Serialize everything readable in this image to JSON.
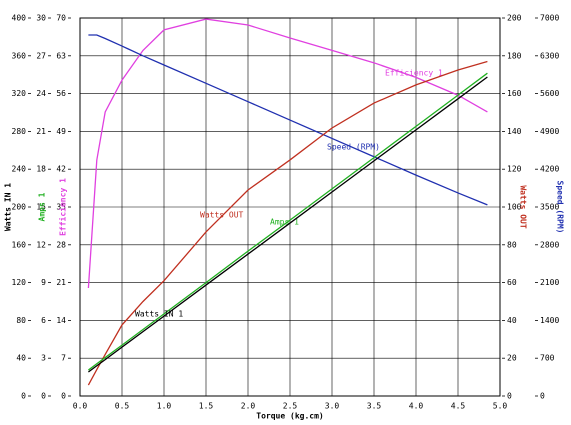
{
  "chart_data": {
    "type": "line",
    "x_label": "Torque (kg.cm)",
    "xlim": [
      0,
      5
    ],
    "xticks": [
      {
        "value": 0,
        "label": "0.0"
      },
      {
        "value": 0.5,
        "label": "0.5"
      },
      {
        "value": 1,
        "label": "1.0"
      },
      {
        "value": 1.5,
        "label": "1.5"
      },
      {
        "value": 2,
        "label": "2.0"
      },
      {
        "value": 2.5,
        "label": "2.5"
      },
      {
        "value": 3,
        "label": "3.0"
      },
      {
        "value": 3.5,
        "label": "3.5"
      },
      {
        "value": 4,
        "label": "4.0"
      },
      {
        "value": 4.5,
        "label": "4.5"
      },
      {
        "value": 5,
        "label": "5.0"
      }
    ],
    "grid": true,
    "axes": [
      {
        "label": "Watts IN 1",
        "color": "#000000",
        "lim": [
          0,
          400
        ],
        "ticks": [
          0,
          40,
          80,
          120,
          160,
          200,
          240,
          280,
          320,
          360,
          400
        ]
      },
      {
        "label": "Amps 1",
        "color": "#20b020",
        "lim": [
          0,
          30
        ],
        "ticks": [
          0,
          3,
          6,
          9,
          12,
          15,
          18,
          21,
          24,
          27,
          30
        ]
      },
      {
        "label": "Efficiency 1",
        "color": "#e040e0",
        "lim": [
          0,
          70
        ],
        "ticks": [
          0,
          7,
          14,
          21,
          28,
          35,
          42,
          49,
          56,
          63,
          70
        ]
      },
      {
        "label": "Watts OUT",
        "color": "#c03020",
        "lim": [
          0,
          200
        ],
        "ticks": [
          0,
          20,
          40,
          60,
          80,
          100,
          120,
          140,
          160,
          180,
          200
        ]
      },
      {
        "label": "Speed (RPM)",
        "color": "#2030b0",
        "lim": [
          0,
          7000
        ],
        "ticks": [
          0,
          700,
          1400,
          2100,
          2800,
          3500,
          4200,
          4900,
          5600,
          6300,
          7000
        ]
      }
    ],
    "x": [
      0.1,
      0.2,
      0.3,
      0.5,
      0.75,
      1,
      1.5,
      2,
      2.5,
      3,
      3.5,
      4,
      4.5,
      4.85
    ],
    "series": [
      {
        "name": "Efficiency 1",
        "color": "#e040e0",
        "axis": 2,
        "values": [
          20,
          43.7,
          52.6,
          58.5,
          64,
          67.8,
          69.8,
          68.7,
          66.3,
          64,
          61.7,
          59,
          55.7,
          52.6
        ]
      },
      {
        "name": "Speed (RPM)",
        "color": "#2030b0",
        "axis": 4,
        "values": [
          6685,
          6685,
          6620,
          6480,
          6300,
          6130,
          5790,
          5450,
          5110,
          4770,
          4430,
          4090,
          3760,
          3540
        ]
      },
      {
        "name": "Watts OUT",
        "color": "#c03020",
        "axis": 3,
        "values": [
          5.8,
          14,
          22,
          37.6,
          50,
          61,
          86.8,
          109,
          124.9,
          141.8,
          155,
          164.6,
          172.5,
          177
        ]
      },
      {
        "name": "Amps 1",
        "color": "#20b020",
        "axis": 1,
        "values": [
          2.06,
          2.56,
          3.05,
          4.04,
          5.28,
          6.52,
          9.0,
          11.5,
          13.96,
          16.44,
          18.92,
          21.4,
          23.88,
          25.62
        ]
      },
      {
        "name": "Watts IN 1",
        "color": "#000000",
        "axis": 0,
        "values": [
          25.4,
          32,
          38.5,
          51.7,
          68.1,
          84.5,
          117.4,
          150.2,
          183,
          215.9,
          248.8,
          281.6,
          314.5,
          337.6
        ]
      }
    ]
  }
}
